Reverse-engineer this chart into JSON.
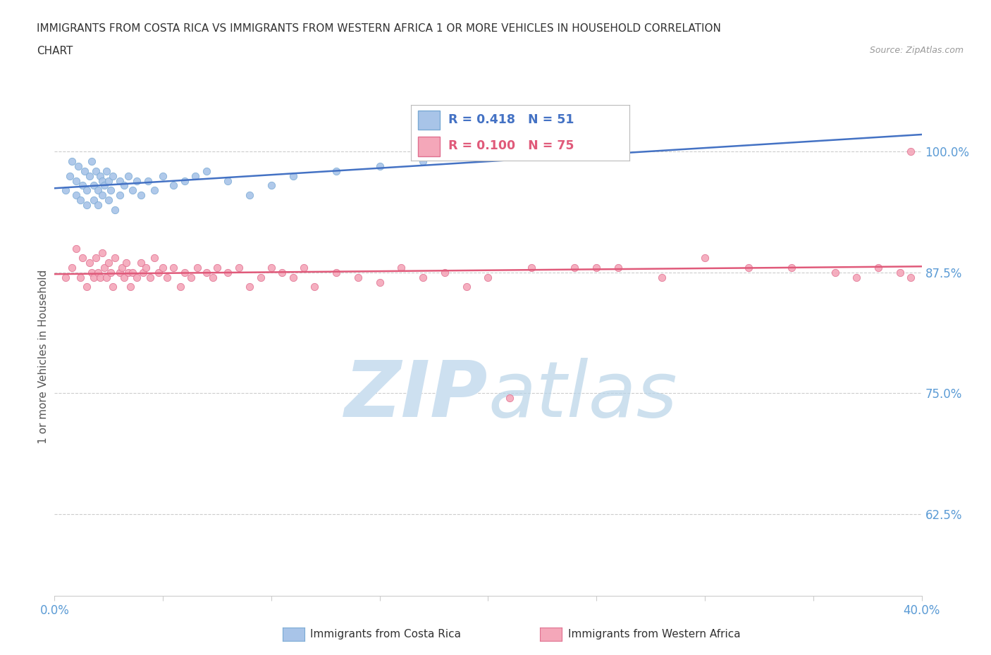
{
  "title_line1": "IMMIGRANTS FROM COSTA RICA VS IMMIGRANTS FROM WESTERN AFRICA 1 OR MORE VEHICLES IN HOUSEHOLD CORRELATION",
  "title_line2": "CHART",
  "source": "Source: ZipAtlas.com",
  "ylabel": "1 or more Vehicles in Household",
  "xlim": [
    0.0,
    0.4
  ],
  "ylim": [
    0.54,
    1.035
  ],
  "xticks": [
    0.0,
    0.05,
    0.1,
    0.15,
    0.2,
    0.25,
    0.3,
    0.35,
    0.4
  ],
  "yticks_right": [
    0.625,
    0.75,
    0.875,
    1.0
  ],
  "yticks_right_labels": [
    "62.5%",
    "75.0%",
    "87.5%",
    "100.0%"
  ],
  "series_costa_rica": {
    "label": "Immigrants from Costa Rica",
    "color": "#a8c4e8",
    "edge_color": "#7aaad4",
    "R": 0.418,
    "N": 51,
    "x": [
      0.005,
      0.007,
      0.008,
      0.01,
      0.01,
      0.011,
      0.012,
      0.013,
      0.014,
      0.015,
      0.015,
      0.016,
      0.017,
      0.018,
      0.018,
      0.019,
      0.02,
      0.02,
      0.021,
      0.022,
      0.022,
      0.023,
      0.024,
      0.025,
      0.025,
      0.026,
      0.027,
      0.028,
      0.03,
      0.03,
      0.032,
      0.034,
      0.036,
      0.038,
      0.04,
      0.043,
      0.046,
      0.05,
      0.055,
      0.06,
      0.065,
      0.07,
      0.08,
      0.09,
      0.1,
      0.11,
      0.13,
      0.15,
      0.17,
      0.19,
      0.22
    ],
    "y": [
      0.96,
      0.975,
      0.99,
      0.955,
      0.97,
      0.985,
      0.95,
      0.965,
      0.98,
      0.945,
      0.96,
      0.975,
      0.99,
      0.95,
      0.965,
      0.98,
      0.945,
      0.96,
      0.975,
      0.955,
      0.97,
      0.965,
      0.98,
      0.95,
      0.97,
      0.96,
      0.975,
      0.94,
      0.955,
      0.97,
      0.965,
      0.975,
      0.96,
      0.97,
      0.955,
      0.97,
      0.96,
      0.975,
      0.965,
      0.97,
      0.975,
      0.98,
      0.97,
      0.955,
      0.965,
      0.975,
      0.98,
      0.985,
      0.99,
      0.995,
      1.0
    ]
  },
  "series_western_africa": {
    "label": "Immigrants from Western Africa",
    "color": "#f4a7b9",
    "edge_color": "#e07090",
    "R": 0.1,
    "N": 75,
    "x": [
      0.005,
      0.008,
      0.01,
      0.012,
      0.013,
      0.015,
      0.016,
      0.017,
      0.018,
      0.019,
      0.02,
      0.021,
      0.022,
      0.023,
      0.024,
      0.025,
      0.026,
      0.027,
      0.028,
      0.03,
      0.031,
      0.032,
      0.033,
      0.034,
      0.035,
      0.036,
      0.038,
      0.04,
      0.041,
      0.042,
      0.044,
      0.046,
      0.048,
      0.05,
      0.052,
      0.055,
      0.058,
      0.06,
      0.063,
      0.066,
      0.07,
      0.073,
      0.075,
      0.08,
      0.085,
      0.09,
      0.095,
      0.1,
      0.105,
      0.11,
      0.115,
      0.12,
      0.13,
      0.14,
      0.15,
      0.16,
      0.17,
      0.18,
      0.19,
      0.2,
      0.21,
      0.22,
      0.24,
      0.26,
      0.28,
      0.3,
      0.32,
      0.34,
      0.36,
      0.37,
      0.38,
      0.39,
      0.395,
      0.25,
      0.395
    ],
    "y": [
      0.87,
      0.88,
      0.9,
      0.87,
      0.89,
      0.86,
      0.885,
      0.875,
      0.87,
      0.89,
      0.875,
      0.87,
      0.895,
      0.88,
      0.87,
      0.885,
      0.875,
      0.86,
      0.89,
      0.875,
      0.88,
      0.87,
      0.885,
      0.875,
      0.86,
      0.875,
      0.87,
      0.885,
      0.875,
      0.88,
      0.87,
      0.89,
      0.875,
      0.88,
      0.87,
      0.88,
      0.86,
      0.875,
      0.87,
      0.88,
      0.875,
      0.87,
      0.88,
      0.875,
      0.88,
      0.86,
      0.87,
      0.88,
      0.875,
      0.87,
      0.88,
      0.86,
      0.875,
      0.87,
      0.865,
      0.88,
      0.87,
      0.875,
      0.86,
      0.87,
      0.745,
      0.88,
      0.88,
      0.88,
      0.87,
      0.89,
      0.88,
      0.88,
      0.875,
      0.87,
      0.88,
      0.875,
      0.87,
      0.88,
      1.0
    ]
  },
  "trend_costa_rica_color": "#4472c4",
  "trend_western_africa_color": "#e05a7a",
  "background_color": "#ffffff",
  "grid_color": "#cccccc",
  "title_color": "#333333",
  "axis_label_color": "#555555",
  "tick_label_color_right": "#5b9bd5",
  "tick_label_color_bottom": "#5b9bd5",
  "watermark_color": "#cde0f0",
  "legend_R_color_cr": "#4472c4",
  "legend_R_color_wa": "#e05a7a"
}
